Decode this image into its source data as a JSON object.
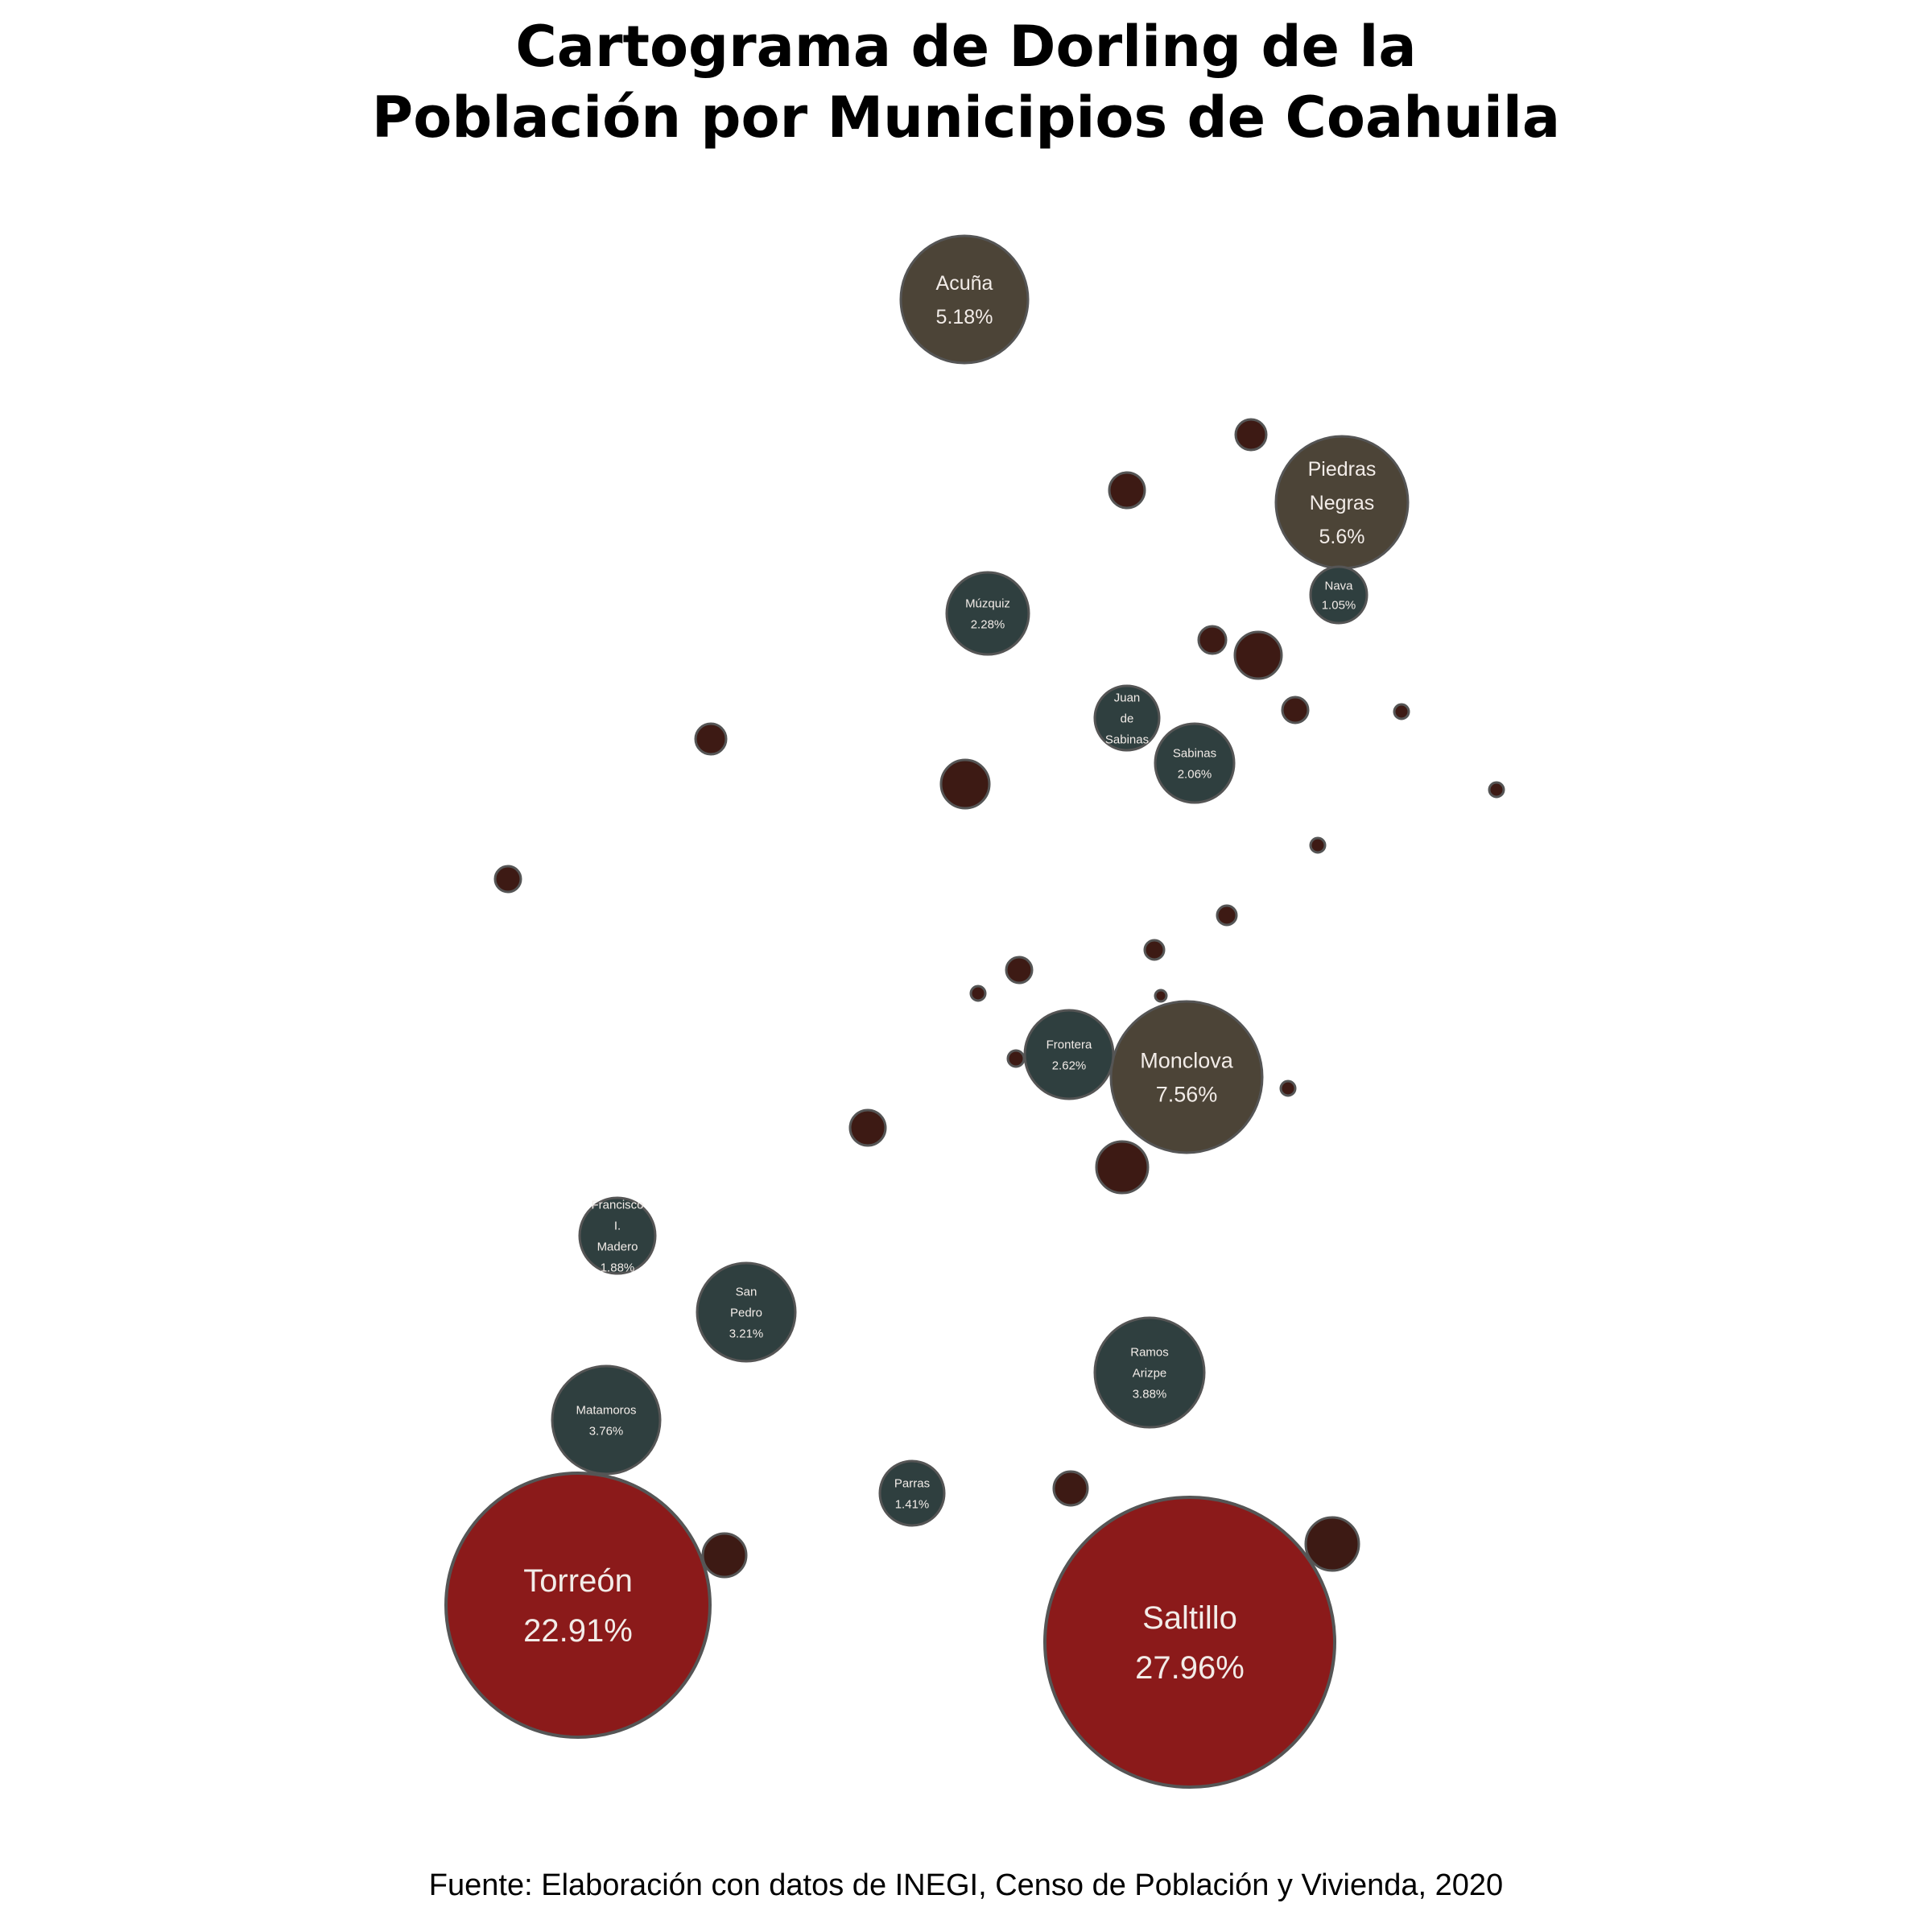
{
  "title": {
    "line1": "Cartograma de Dorling de la",
    "line2": "Población por Municipios de Coahuila"
  },
  "source": "Fuente: Elaboración con datos de INEGI, Censo de Población y Vivienda, 2020",
  "colors": {
    "large": "#8b1a1a",
    "medium": "#4c4437",
    "small_labeled": "#2f3f3f",
    "small_unlabeled": "#3d1a14",
    "stroke": "#555555",
    "label_text": "#f2ece8"
  },
  "municipalities": [
    {
      "name": "Saltillo",
      "name_lines": [
        "Saltillo"
      ],
      "pct_label": "27.96%",
      "pct": 27.96,
      "group": "large"
    },
    {
      "name": "Torreón",
      "name_lines": [
        "Torreón"
      ],
      "pct_label": "22.91%",
      "pct": 22.91,
      "group": "large"
    },
    {
      "name": "Monclova",
      "name_lines": [
        "Monclova"
      ],
      "pct_label": "7.56%",
      "pct": 7.56,
      "group": "medium"
    },
    {
      "name": "Piedras Negras",
      "name_lines": [
        "Piedras",
        "Negras"
      ],
      "pct_label": "5.6%",
      "pct": 5.6,
      "group": "medium"
    },
    {
      "name": "Acuña",
      "name_lines": [
        "Acuña"
      ],
      "pct_label": "5.18%",
      "pct": 5.18,
      "group": "medium"
    },
    {
      "name": "Ramos Arizpe",
      "name_lines": [
        "Ramos",
        "Arizpe"
      ],
      "pct_label": "3.88%",
      "pct": 3.88,
      "group": "small_labeled"
    },
    {
      "name": "Matamoros",
      "name_lines": [
        "Matamoros"
      ],
      "pct_label": "3.76%",
      "pct": 3.76,
      "group": "small_labeled"
    },
    {
      "name": "San Pedro",
      "name_lines": [
        "San",
        "Pedro"
      ],
      "pct_label": "3.21%",
      "pct": 3.21,
      "group": "small_labeled"
    },
    {
      "name": "Frontera",
      "name_lines": [
        "Frontera"
      ],
      "pct_label": "2.62%",
      "pct": 2.62,
      "group": "small_labeled"
    },
    {
      "name": "Múzquiz",
      "name_lines": [
        "Múzquiz"
      ],
      "pct_label": "2.28%",
      "pct": 2.28,
      "group": "small_labeled"
    },
    {
      "name": "Sabinas",
      "name_lines": [
        "Sabinas"
      ],
      "pct_label": "2.06%",
      "pct": 2.06,
      "group": "small_labeled"
    },
    {
      "name": "Francisco I. Madero",
      "name_lines": [
        "Francisco",
        "I.",
        "Madero"
      ],
      "pct_label": "1.88%",
      "pct": 1.88,
      "group": "small_labeled"
    },
    {
      "name": "Juan de Sabinas",
      "name_lines": [
        "Juan",
        "de",
        "Sabinas"
      ],
      "pct_label": "",
      "pct": null,
      "group": "small_labeled"
    },
    {
      "name": "Parras",
      "name_lines": [
        "Parras"
      ],
      "pct_label": "1.41%",
      "pct": 1.41,
      "group": "small_labeled"
    },
    {
      "name": "Nava",
      "name_lines": [
        "Nava"
      ],
      "pct_label": "1.05%",
      "pct": 1.05,
      "group": "small_labeled"
    }
  ],
  "unlabeled_municipality_count": 23
}
